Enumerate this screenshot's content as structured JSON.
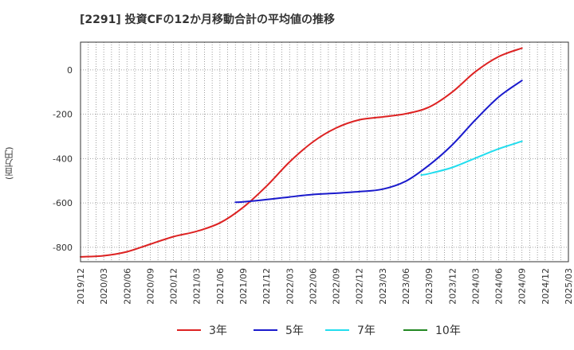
{
  "chart_title": "[2291]  投資CFの12か月移動合計の平均値の推移",
  "chart_data": {
    "type": "line",
    "title": "[2291]  投資CFの12か月移動合計の平均値の推移",
    "xlabel": "",
    "ylabel": "(百万円)",
    "x_tick_labels": [
      "2019/12",
      "2020/03",
      "2020/06",
      "2020/09",
      "2020/12",
      "2021/03",
      "2021/06",
      "2021/09",
      "2021/12",
      "2022/03",
      "2022/06",
      "2022/09",
      "2022/12",
      "2023/03",
      "2023/06",
      "2023/09",
      "2023/12",
      "2024/03",
      "2024/06",
      "2024/09",
      "2024/12",
      "2025/03"
    ],
    "y_ticks": [
      0,
      -200,
      -400,
      -600,
      -800
    ],
    "ylim": [
      -865,
      125
    ],
    "grid": true,
    "legend_position": "bottom",
    "series": [
      {
        "name": "3年",
        "color": "#dd2222",
        "x": [
          "2019/12",
          "2020/03",
          "2020/06",
          "2020/09",
          "2020/12",
          "2021/03",
          "2021/06",
          "2021/09",
          "2021/12",
          "2022/03",
          "2022/06",
          "2022/09",
          "2022/12",
          "2023/03",
          "2023/06",
          "2023/09",
          "2023/12",
          "2024/03",
          "2024/06",
          "2024/09"
        ],
        "values": [
          -843,
          -838,
          -820,
          -786,
          -752,
          -728,
          -690,
          -620,
          -525,
          -415,
          -325,
          -262,
          -225,
          -212,
          -198,
          -168,
          -100,
          -8,
          60,
          98
        ]
      },
      {
        "name": "5年",
        "color": "#1a1acc",
        "x": [
          "2021/08",
          "2021/09",
          "2021/12",
          "2022/03",
          "2022/06",
          "2022/09",
          "2022/12",
          "2023/03",
          "2023/06",
          "2023/09",
          "2023/12",
          "2024/03",
          "2024/06",
          "2024/09"
        ],
        "values": [
          -597,
          -595,
          -585,
          -573,
          -562,
          -556,
          -549,
          -538,
          -502,
          -430,
          -338,
          -225,
          -122,
          -48
        ]
      },
      {
        "name": "7年",
        "color": "#22ddee",
        "x": [
          "2023/08",
          "2023/09",
          "2023/12",
          "2024/03",
          "2024/06",
          "2024/09"
        ],
        "values": [
          -474,
          -468,
          -440,
          -398,
          -356,
          -322
        ]
      },
      {
        "name": "10年",
        "color": "#228822",
        "x": [],
        "values": []
      }
    ]
  }
}
